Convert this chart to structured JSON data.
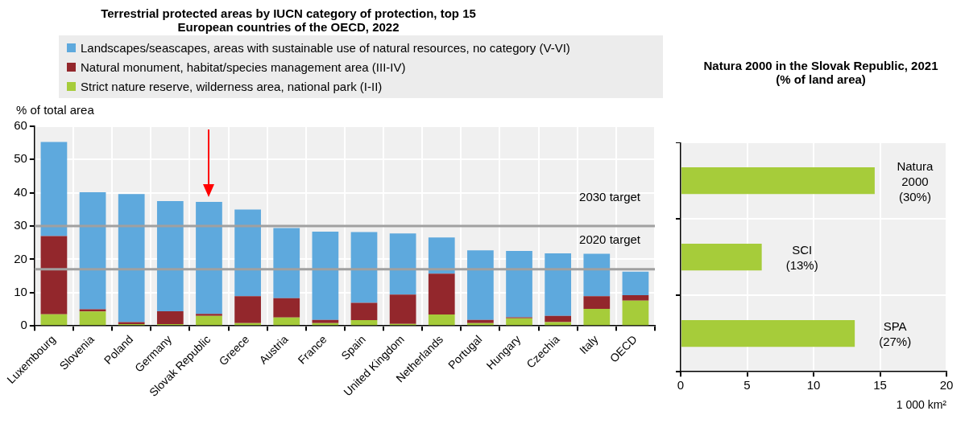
{
  "chart_data": [
    {
      "type": "bar",
      "title": "Terrestrial protected areas by IUCN category of protection, top 15 European countries of the OECD, 2022",
      "ylabel": "% of total area",
      "categories": [
        "Luxembourg",
        "Slovenia",
        "Poland",
        "Germany",
        "Slovak Republic",
        "Greece",
        "Austria",
        "France",
        "Spain",
        "United Kingdom",
        "Netherlands",
        "Portugal",
        "Hungary",
        "Czechia",
        "Italy",
        "OECD"
      ],
      "series": [
        {
          "name": "Strict nature reserve, wilderness area, national park (I-II)",
          "color": "#a6cc3a",
          "values": [
            3.5,
            4.3,
            0.5,
            0.5,
            3.0,
            0.8,
            2.5,
            0.8,
            1.7,
            0.6,
            3.4,
            0.8,
            2.3,
            1.1,
            5.1,
            7.6
          ]
        },
        {
          "name": "Natural monument, habitat/species management area (III-IV)",
          "color": "#93272c",
          "values": [
            23.5,
            0.7,
            0.6,
            3.9,
            0.6,
            8.1,
            5.8,
            1.0,
            5.2,
            8.8,
            12.3,
            1.0,
            0.3,
            1.9,
            3.8,
            1.6
          ]
        },
        {
          "name": "Landscapes/seascapes, areas with sustainable use of natural resources, no category (V-VI)",
          "color": "#5ea9dd",
          "values": [
            28.3,
            35.2,
            38.5,
            33.1,
            33.7,
            26.1,
            21.1,
            26.5,
            21.3,
            18.4,
            10.9,
            20.9,
            19.9,
            18.8,
            12.8,
            7.1
          ]
        }
      ],
      "stacked": true,
      "ylim": [
        0,
        60
      ],
      "yticks": [
        0,
        10,
        20,
        30,
        40,
        50,
        60
      ],
      "grid": true,
      "legend": "top",
      "ref_lines": [
        {
          "axis": "y",
          "value": 30,
          "label": "2030 target",
          "color": "#a0a0a0"
        },
        {
          "axis": "y",
          "value": 17,
          "label": "2020 target",
          "color": "#a0a0a0"
        }
      ]
    },
    {
      "type": "bar",
      "title": "Natura 2000 in the Slovak Republic, 2021 (% of land area)",
      "xlabel": "1 000 km²",
      "orientation": "horizontal",
      "categories": [
        "Natura 2000",
        "SCI",
        "SPA"
      ],
      "values": [
        14.6,
        6.1,
        13.1
      ],
      "color": "#a6cc3a",
      "xlim": [
        0,
        20
      ],
      "xticks": [
        0,
        5,
        10,
        15,
        20
      ],
      "grid": true,
      "tick_labels": "x",
      "annotations": [
        {
          "text": "(30%)",
          "x": 14.6,
          "y": "Natura 2000"
        },
        {
          "text": "(13%)",
          "x": 6.1,
          "y": "SCI"
        },
        {
          "text": "(27%)",
          "x": 13.1,
          "y": "SPA"
        }
      ]
    }
  ]
}
